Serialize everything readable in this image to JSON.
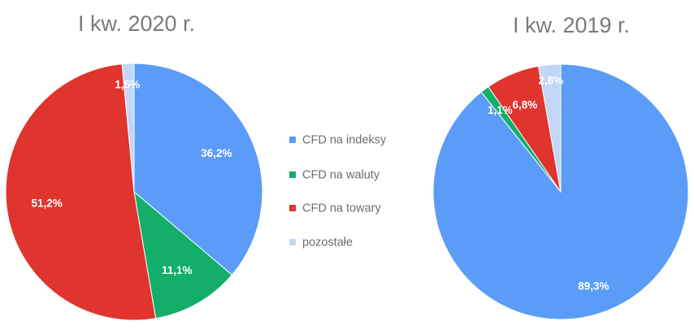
{
  "chart_data": [
    {
      "type": "pie",
      "title": "I kw. 2020 r.",
      "categories": [
        "CFD na indeksy",
        "CFD na waluty",
        "CFD na towary",
        "pozostałe"
      ],
      "values": [
        36.2,
        11.1,
        51.2,
        1.5
      ],
      "value_labels": [
        "36,2%",
        "11,1%",
        "51,2%",
        "1,5%"
      ]
    },
    {
      "type": "pie",
      "title": "I kw. 2019 r.",
      "categories": [
        "CFD na indeksy",
        "CFD na waluty",
        "CFD na towary",
        "pozostałe"
      ],
      "values": [
        89.3,
        1.1,
        6.8,
        2.8
      ],
      "value_labels": [
        "89,3%",
        "1,1%",
        "6,8%",
        "2,8%"
      ]
    }
  ],
  "legend": {
    "placement": "center",
    "items": [
      {
        "label": "CFD na indeksy",
        "color": "#5b9cf8"
      },
      {
        "label": "CFD na waluty",
        "color": "#12ae6a"
      },
      {
        "label": "CFD na towary",
        "color": "#e0342e"
      },
      {
        "label": "pozostałe",
        "color": "#c3d6f7"
      }
    ]
  },
  "colors": [
    "#5b9cf8",
    "#12ae6a",
    "#e0342e",
    "#c3d6f7"
  ]
}
